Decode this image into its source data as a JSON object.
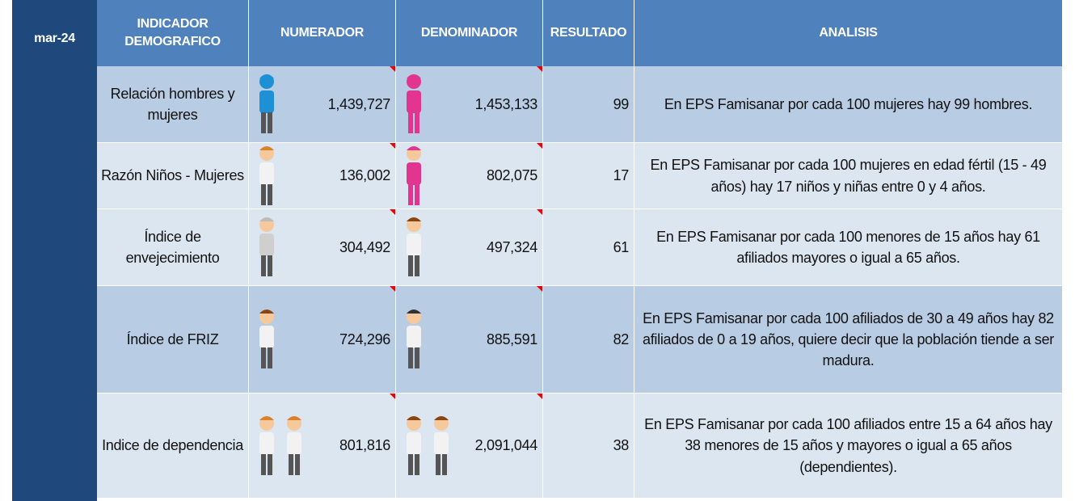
{
  "header": {
    "period": "mar-24",
    "columns": [
      "INDICADOR DEMOGRAFICO",
      "NUMERADOR",
      "DENOMINADOR",
      "RESULTADO",
      "ANALISIS"
    ]
  },
  "rows": [
    {
      "indicator": "Relación hombres y mujeres",
      "numerator": "1,439,727",
      "denominator": "1,453,133",
      "result": 99,
      "analysis": "En EPS Famisanar por cada 100 mujeres hay 99 hombres."
    },
    {
      "indicator": "Razón Niños - Mujeres",
      "numerator": "136,002",
      "denominator": "802,075",
      "result": 17,
      "analysis": "En EPS Famisanar por cada 100 mujeres en edad fértil (15 - 49 años) hay 17 niños y niñas  entre 0 y 4 años."
    },
    {
      "indicator": "Índice de envejecimiento",
      "numerator": "304,492",
      "denominator": "497,324",
      "result": 61,
      "analysis": "En EPS Famisanar por cada 100 menores de 15 años hay 61 afiliados mayores o igual a 65 años."
    },
    {
      "indicator": "Índice de FRIZ",
      "numerator": "724,296",
      "denominator": "885,591",
      "result": 82,
      "analysis": "En EPS Famisanar por cada 100 afiliados de 30 a 49 años hay 82 afiliados de 0 a 19 años, quiere decir que la población tiende a ser madura."
    },
    {
      "indicator": "Indice de dependencia",
      "numerator": "801,816",
      "denominator": "2,091,044",
      "result": 38,
      "analysis": "En EPS Famisanar por cada 100 afiliados entre 15 a 64 años hay 38 menores de 15 años y mayores o igual a 65 años (dependientes)."
    }
  ]
}
